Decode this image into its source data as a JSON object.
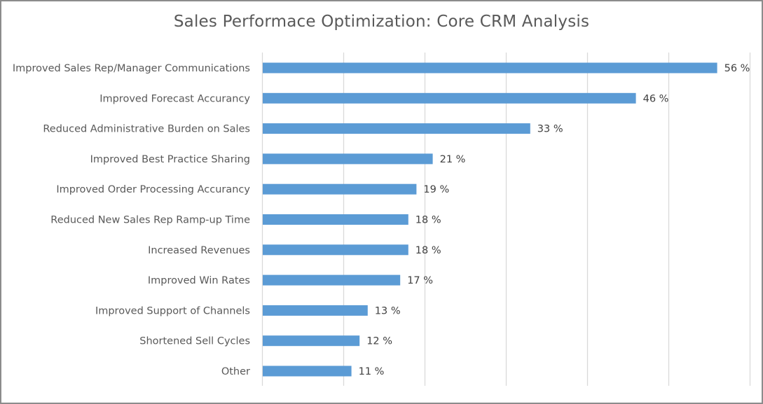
{
  "chart_data": {
    "type": "bar",
    "orientation": "horizontal",
    "title": "Sales Performace Optimization: Core CRM Analysis",
    "categories": [
      "Improved Sales Rep/Manager Communications",
      "Improved Forecast Accurancy",
      "Reduced Administrative Burden on Sales",
      "Improved Best Practice Sharing",
      "Improved Order Processing Accurancy",
      "Reduced New Sales Rep Ramp-up Time",
      "Increased Revenues",
      "Improved Win Rates",
      "Improved Support of Channels",
      "Shortened Sell Cycles",
      "Other"
    ],
    "values": [
      56,
      46,
      33,
      21,
      19,
      18,
      18,
      17,
      13,
      12,
      11
    ],
    "data_labels": [
      "56 %",
      "46 %",
      "33 %",
      "21 %",
      "19 %",
      "18 %",
      "18 %",
      "17 %",
      "13 %",
      "12 %",
      "11 %"
    ],
    "xlim": [
      0,
      60
    ],
    "grid": true,
    "bar_color": "#5b9bd5",
    "grid_color": "#d9d9d9"
  }
}
